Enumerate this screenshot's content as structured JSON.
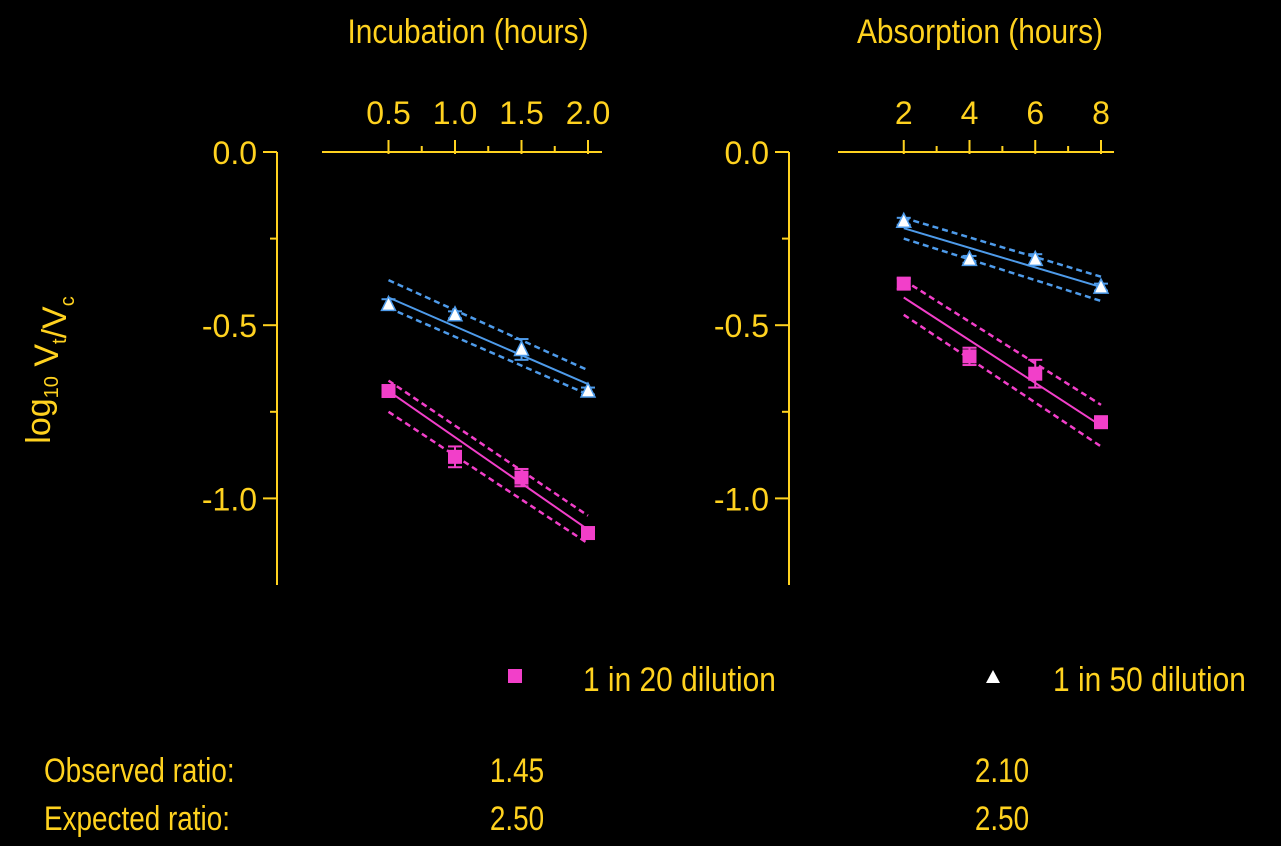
{
  "colors": {
    "axis": "#FFD21F",
    "text": "#FFD21F",
    "pink": "#F23FC9",
    "blue": "#4E9BEA",
    "white": "#FFFFFF"
  },
  "yaxis_label": {
    "main": "log",
    "sub1": "10",
    "mid": " V",
    "sub2": "t",
    "slash": "/V",
    "sub3": "c"
  },
  "chart_data": [
    {
      "type": "scatter",
      "title": "Incubation (hours)",
      "xlabel": "Incubation (hours)",
      "ylabel": "log10 Vt/Vc",
      "x_axis_position": "top",
      "xlim": [
        0.0,
        2.0
      ],
      "ylim": [
        -1.25,
        0.0
      ],
      "xticks": [
        "0.5",
        "1.0",
        "1.5",
        "2.0"
      ],
      "yticks": [
        "0.0",
        "-0.5",
        "-1.0"
      ],
      "series": [
        {
          "name": "1 in 20 dilution",
          "marker": "square",
          "color": "#F23FC9",
          "x": [
            0.5,
            1.0,
            1.5,
            2.0
          ],
          "y": [
            -0.69,
            -0.88,
            -0.94,
            -1.1
          ],
          "err": [
            0.015,
            0.03,
            0.025,
            0.01
          ],
          "fit": [
            [
              0.5,
              -0.69
            ],
            [
              2.0,
              -1.09
            ]
          ],
          "ci_upper": [
            [
              0.5,
              -0.66
            ],
            [
              2.0,
              -1.05
            ]
          ],
          "ci_lower": [
            [
              0.5,
              -0.75
            ],
            [
              2.0,
              -1.13
            ]
          ]
        },
        {
          "name": "1 in 50 dilution",
          "marker": "triangle",
          "color": "#4E9BEA",
          "x": [
            0.5,
            1.0,
            1.5,
            2.0
          ],
          "y": [
            -0.44,
            -0.47,
            -0.57,
            -0.69
          ],
          "err": [
            0.015,
            0.01,
            0.03,
            0.01
          ],
          "fit": [
            [
              0.5,
              -0.42
            ],
            [
              2.0,
              -0.67
            ]
          ],
          "ci_upper": [
            [
              0.5,
              -0.37
            ],
            [
              2.0,
              -0.63
            ]
          ],
          "ci_lower": [
            [
              0.5,
              -0.45
            ],
            [
              2.0,
              -0.7
            ]
          ]
        }
      ]
    },
    {
      "type": "scatter",
      "title": "Absorption (hours)",
      "xlabel": "Absorption (hours)",
      "ylabel": "log10 Vt/Vc",
      "x_axis_position": "top",
      "xlim": [
        0.0,
        8.0
      ],
      "ylim": [
        -1.25,
        0.0
      ],
      "xticks": [
        "2",
        "4",
        "6",
        "8"
      ],
      "yticks": [
        "0.0",
        "-0.5",
        "-1.0"
      ],
      "series": [
        {
          "name": "1 in 20 dilution",
          "marker": "square",
          "color": "#F23FC9",
          "x": [
            2,
            4,
            6,
            8
          ],
          "y": [
            -0.38,
            -0.59,
            -0.64,
            -0.78
          ],
          "err": [
            0.015,
            0.025,
            0.04,
            0.015
          ],
          "fit": [
            [
              2,
              -0.42
            ],
            [
              8,
              -0.79
            ]
          ],
          "ci_upper": [
            [
              2,
              -0.37
            ],
            [
              8,
              -0.73
            ]
          ],
          "ci_lower": [
            [
              2,
              -0.47
            ],
            [
              8,
              -0.85
            ]
          ]
        },
        {
          "name": "1 in 50 dilution",
          "marker": "triangle",
          "color": "#4E9BEA",
          "x": [
            2,
            4,
            6,
            8
          ],
          "y": [
            -0.2,
            -0.31,
            -0.31,
            -0.39
          ],
          "err": [
            0.01,
            0.01,
            0.015,
            0.01
          ],
          "fit": [
            [
              2,
              -0.22
            ],
            [
              8,
              -0.39
            ]
          ],
          "ci_upper": [
            [
              2,
              -0.19
            ],
            [
              8,
              -0.36
            ]
          ],
          "ci_lower": [
            [
              2,
              -0.25
            ],
            [
              8,
              -0.43
            ]
          ]
        }
      ]
    }
  ],
  "legend": [
    {
      "label": "1 in 20 dilution",
      "marker": "square",
      "color": "#F23FC9"
    },
    {
      "label": "1 in 50 dilution",
      "marker": "triangle",
      "color": "#FFFFFF"
    }
  ],
  "ratios": {
    "observed_label": "Observed ratio:",
    "expected_label": "Expected ratio:",
    "observed": [
      "1.45",
      "2.10"
    ],
    "expected": [
      "2.50",
      "2.50"
    ]
  }
}
